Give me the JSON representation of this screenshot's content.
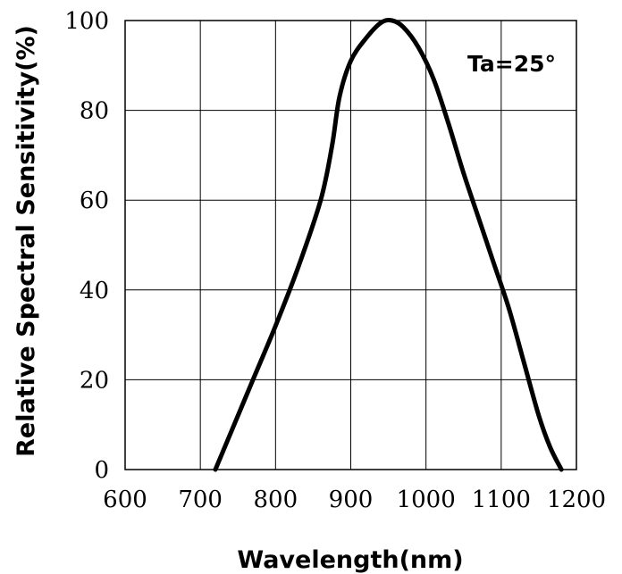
{
  "chart_data": {
    "type": "line",
    "xlabel": "Wavelength(nm)",
    "ylabel": "Relative Spectral Sensitivity(%)",
    "annotation": "Ta=25°",
    "xlim": [
      600,
      1200
    ],
    "ylim": [
      0,
      100
    ],
    "x_ticks": [
      600,
      700,
      800,
      900,
      1000,
      1100,
      1200
    ],
    "y_ticks": [
      0,
      20,
      40,
      60,
      80,
      100
    ],
    "grid": true,
    "line_color": "#000000",
    "series": [
      {
        "x": [
          720,
          745,
          770,
          800,
          830,
          860,
          875,
          885,
          900,
          920,
          940,
          955,
          970,
          990,
          1010,
          1030,
          1050,
          1070,
          1090,
          1110,
          1130,
          1150,
          1165,
          1180
        ],
        "y": [
          0,
          10,
          20,
          32,
          45,
          60,
          72,
          83,
          91,
          96,
          99.5,
          100,
          98.5,
          94,
          87,
          77,
          66,
          56,
          46,
          36,
          24,
          12,
          5,
          0
        ]
      }
    ]
  }
}
